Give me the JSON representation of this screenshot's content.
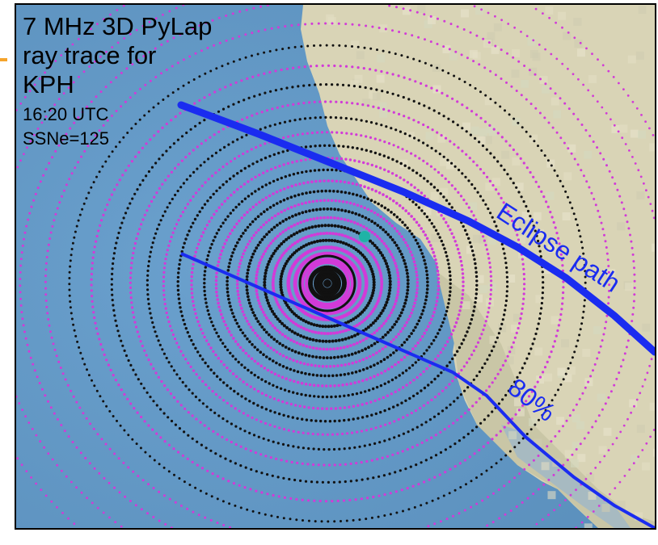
{
  "title_lines": [
    "7 MHz 3D PyLap",
    "ray trace for",
    "KPH"
  ],
  "time": "16:20 UTC",
  "ssn": "SSNe=125",
  "labels": {
    "eclipse_path": "Eclipse path",
    "obscuration": "80%"
  },
  "colors": {
    "ocean": "#5f95c3",
    "land": "#d8d4b8",
    "eclipse_line": "#1a2cf0",
    "ray_magenta": "#d23ad8",
    "ray_black": "#111111",
    "receiver": "#1fb3a6",
    "accent": "#f5a42b"
  },
  "icons": [
    "transmitter-marker",
    "receiver-marker",
    "ray-landing-dots"
  ]
}
